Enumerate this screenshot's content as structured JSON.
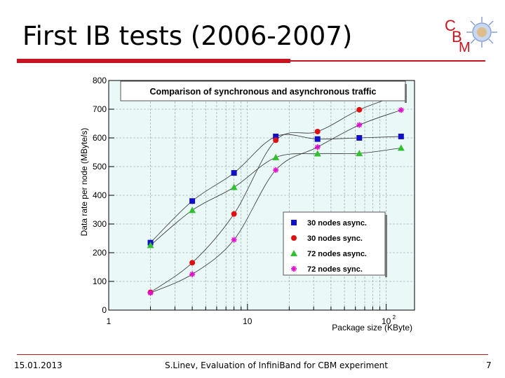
{
  "slide": {
    "title": "First IB tests (2006-2007)",
    "footer_date": "15.01.2013",
    "footer_center": "S.Linev, Evaluation of InfiniBand for CBM experiment",
    "page_number": "7",
    "logo_letters": [
      "C",
      "B",
      "M"
    ],
    "accent_color": "#c8141e"
  },
  "chart_data": {
    "type": "scatter",
    "title": "Comparison of synchronous and asynchronous traffic",
    "xlabel": "Package size (KByte)",
    "ylabel": "Data rate per node (MByte/s)",
    "xscale": "log",
    "xlim": [
      1,
      160
    ],
    "ylim": [
      0,
      800
    ],
    "yticks": [
      0,
      100,
      200,
      300,
      400,
      500,
      600,
      700,
      800
    ],
    "xtick_labels": [
      {
        "value": 1,
        "label": "1"
      },
      {
        "value": 10,
        "label": "10"
      },
      {
        "value": 100,
        "label": "10",
        "sup": "2"
      }
    ],
    "legend_position": "bottom-right",
    "series": [
      {
        "name": "30 nodes async.",
        "marker": "square",
        "color": "#1010c8",
        "x": [
          2,
          4,
          8,
          16,
          32,
          64,
          128
        ],
        "y": [
          235,
          380,
          478,
          605,
          596,
          600,
          605
        ]
      },
      {
        "name": "30 nodes sync.",
        "marker": "circle",
        "color": "#e01010",
        "x": [
          2,
          4,
          8,
          16,
          32,
          64,
          128
        ],
        "y": [
          62,
          165,
          335,
          592,
          622,
          698,
          752
        ]
      },
      {
        "name": "72 nodes async.",
        "marker": "triangle",
        "color": "#30c030",
        "x": [
          2,
          4,
          8,
          16,
          32,
          64,
          128
        ],
        "y": [
          226,
          348,
          428,
          532,
          545,
          546,
          565
        ]
      },
      {
        "name": "72 nodes sync.",
        "marker": "star",
        "color": "#e010d0",
        "x": [
          2,
          4,
          8,
          16,
          32,
          64,
          128
        ],
        "y": [
          60,
          125,
          245,
          488,
          568,
          645,
          697
        ]
      }
    ]
  }
}
